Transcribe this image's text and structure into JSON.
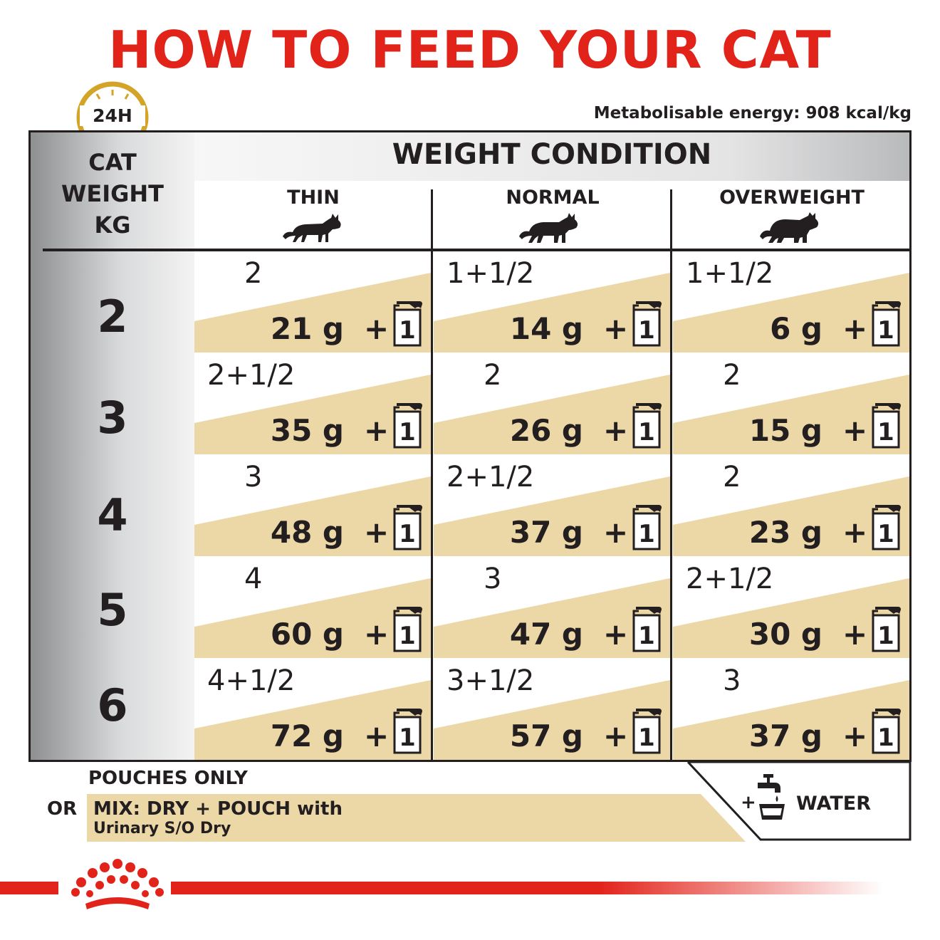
{
  "title": "HOW TO FEED YOUR CAT",
  "clock_label": "24H",
  "energy": "Metabolisable energy: 908 kcal/kg",
  "header": {
    "weight_condition": "WEIGHT CONDITION",
    "cat_weight": [
      "CAT",
      "WEIGHT",
      "KG"
    ],
    "columns": [
      "THIN",
      "NORMAL",
      "OVERWEIGHT"
    ]
  },
  "rows": [
    {
      "kg": "2",
      "cells": [
        {
          "pouch": "2",
          "dry": "21 g"
        },
        {
          "pouch": "1+1/2",
          "dry": "14 g"
        },
        {
          "pouch": "1+1/2",
          "dry": "6 g"
        }
      ]
    },
    {
      "kg": "3",
      "cells": [
        {
          "pouch": "2+1/2",
          "dry": "35 g"
        },
        {
          "pouch": "2",
          "dry": "26 g"
        },
        {
          "pouch": "2",
          "dry": "15 g"
        }
      ]
    },
    {
      "kg": "4",
      "cells": [
        {
          "pouch": "3",
          "dry": "48 g"
        },
        {
          "pouch": "2+1/2",
          "dry": "37 g"
        },
        {
          "pouch": "2",
          "dry": "23 g"
        }
      ]
    },
    {
      "kg": "5",
      "cells": [
        {
          "pouch": "4",
          "dry": "60 g"
        },
        {
          "pouch": "3",
          "dry": "47 g"
        },
        {
          "pouch": "2+1/2",
          "dry": "30 g"
        }
      ]
    },
    {
      "kg": "6",
      "cells": [
        {
          "pouch": "4+1/2",
          "dry": "72 g"
        },
        {
          "pouch": "3+1/2",
          "dry": "57 g"
        },
        {
          "pouch": "3",
          "dry": "37 g"
        }
      ]
    }
  ],
  "plus_sign": "+",
  "pouch_icon_number": "1",
  "legend": {
    "pouches_only": "POUCHES ONLY",
    "or": "OR",
    "mix_line1": "MIX: DRY + POUCH with",
    "mix_line2": "Urinary S/O Dry",
    "water_plus": "+",
    "water": "WATER"
  },
  "colors": {
    "brand_red": "#e2231a",
    "band_tan": "#ecd7a6",
    "clock_gold": "#d4a428",
    "text": "#231f20"
  }
}
